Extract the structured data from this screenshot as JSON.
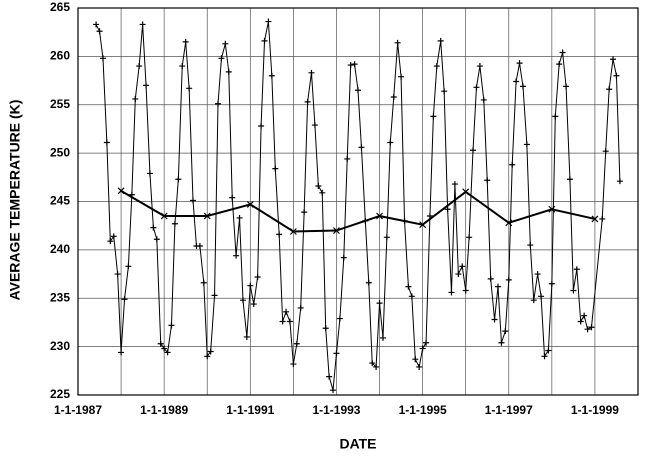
{
  "chart_data": {
    "type": "line",
    "xlabel": "DATE",
    "ylabel": "AVERAGE TEMPERATURE (K)",
    "xlim": [
      1987,
      2000
    ],
    "ylim": [
      225,
      265
    ],
    "xticks": [
      {
        "value": 1987,
        "label": "1-1-1987"
      },
      {
        "value": 1988,
        "label": null
      },
      {
        "value": 1989,
        "label": "1-1-1989"
      },
      {
        "value": 1990,
        "label": null
      },
      {
        "value": 1991,
        "label": "1-1-1991"
      },
      {
        "value": 1992,
        "label": null
      },
      {
        "value": 1993,
        "label": "1-1-1993"
      },
      {
        "value": 1994,
        "label": null
      },
      {
        "value": 1995,
        "label": "1-1-1995"
      },
      {
        "value": 1996,
        "label": null
      },
      {
        "value": 1997,
        "label": "1-1-1997"
      },
      {
        "value": 1998,
        "label": null
      },
      {
        "value": 1999,
        "label": "1-1-1999"
      }
    ],
    "yticks": [
      225,
      230,
      235,
      240,
      245,
      250,
      255,
      260,
      265
    ],
    "grid": true,
    "series": [
      {
        "color": "#000000",
        "marker": "plus",
        "width": 1,
        "x": [
          1987.42,
          1987.5,
          1987.58,
          1987.67,
          1987.75,
          1987.83,
          1987.92,
          1988.0,
          1988.08,
          1988.17,
          1988.25,
          1988.33,
          1988.42,
          1988.5,
          1988.58,
          1988.67,
          1988.75,
          1988.83,
          1988.92,
          1989.0,
          1989.08,
          1989.17,
          1989.25,
          1989.33,
          1989.42,
          1989.5,
          1989.58,
          1989.67,
          1989.75,
          1989.83,
          1989.92,
          1990.0,
          1990.08,
          1990.17,
          1990.25,
          1990.33,
          1990.42,
          1990.5,
          1990.58,
          1990.67,
          1990.75,
          1990.83,
          1990.92,
          1991.0,
          1991.08,
          1991.17,
          1991.25,
          1991.33,
          1991.42,
          1991.5,
          1991.58,
          1991.67,
          1991.75,
          1991.83,
          1991.92,
          1992.0,
          1992.08,
          1992.17,
          1992.25,
          1992.33,
          1992.42,
          1992.5,
          1992.58,
          1992.67,
          1992.75,
          1992.83,
          1992.92,
          1993.0,
          1993.08,
          1993.17,
          1993.25,
          1993.33,
          1993.42,
          1993.5,
          1993.58,
          1993.67,
          1993.75,
          1993.83,
          1993.92,
          1994.0,
          1994.08,
          1994.17,
          1994.25,
          1994.33,
          1994.42,
          1994.5,
          1994.58,
          1994.67,
          1994.75,
          1994.83,
          1994.92,
          1995.0,
          1995.08,
          1995.17,
          1995.25,
          1995.33,
          1995.42,
          1995.5,
          1995.58,
          1995.67,
          1995.75,
          1995.83,
          1995.92,
          1996.0,
          1996.08,
          1996.17,
          1996.25,
          1996.33,
          1996.42,
          1996.5,
          1996.58,
          1996.67,
          1996.75,
          1996.83,
          1996.92,
          1997.0,
          1997.08,
          1997.17,
          1997.25,
          1997.33,
          1997.42,
          1997.5,
          1997.58,
          1997.67,
          1997.75,
          1997.83,
          1997.92,
          1998.0,
          1998.08,
          1998.17,
          1998.25,
          1998.33,
          1998.42,
          1998.5,
          1998.58,
          1998.67,
          1998.75,
          1998.83,
          1998.92,
          1999.17,
          1999.25,
          1999.33,
          1999.42,
          1999.5,
          1999.58
        ],
        "values": [
          263.3,
          262.6,
          259.8,
          251.1,
          240.9,
          241.4,
          237.5,
          229.4,
          234.9,
          238.3,
          245.7,
          255.6,
          259.0,
          263.3,
          257.0,
          247.9,
          242.3,
          241.1,
          230.3,
          229.8,
          229.4,
          232.2,
          242.7,
          247.3,
          259.0,
          261.5,
          256.7,
          245.1,
          240.4,
          240.4,
          236.6,
          229.0,
          229.5,
          235.3,
          255.1,
          259.8,
          261.3,
          258.4,
          245.4,
          239.4,
          243.3,
          234.8,
          231.0,
          236.3,
          234.4,
          237.2,
          252.8,
          261.6,
          263.6,
          258.0,
          248.4,
          241.6,
          232.6,
          233.6,
          232.6,
          228.2,
          230.3,
          234.0,
          243.9,
          255.3,
          258.3,
          252.9,
          246.6,
          245.9,
          231.9,
          226.9,
          225.5,
          229.3,
          232.9,
          239.2,
          249.4,
          259.1,
          259.2,
          256.5,
          250.6,
          243.0,
          236.6,
          228.3,
          227.9,
          234.5,
          230.9,
          241.3,
          251.1,
          255.8,
          261.4,
          257.9,
          243.0,
          236.2,
          235.2,
          228.7,
          227.9,
          229.8,
          230.4,
          243.5,
          253.8,
          259.0,
          261.6,
          256.4,
          244.2,
          235.6,
          246.8,
          237.5,
          238.3,
          235.8,
          241.3,
          250.3,
          256.8,
          259.0,
          255.5,
          247.2,
          237.0,
          232.8,
          236.2,
          230.4,
          231.6,
          236.9,
          248.8,
          257.4,
          259.3,
          256.9,
          250.9,
          240.5,
          234.8,
          237.5,
          235.2,
          229.0,
          229.6,
          236.5,
          253.8,
          259.2,
          260.4,
          256.9,
          247.3,
          235.8,
          238.0,
          232.6,
          233.2,
          231.8,
          232.0,
          243.2,
          250.2,
          256.6,
          259.7,
          258.0,
          247.1
        ]
      },
      {
        "color": "#000000",
        "marker": "cross",
        "width": 2,
        "x": [
          1988,
          1989,
          1990,
          1991,
          1992,
          1993,
          1994,
          1995,
          1996,
          1997,
          1998,
          1999
        ],
        "values": [
          246.1,
          243.5,
          243.5,
          244.7,
          241.9,
          242.0,
          243.5,
          242.6,
          246.0,
          242.8,
          244.2,
          243.2
        ]
      }
    ]
  }
}
